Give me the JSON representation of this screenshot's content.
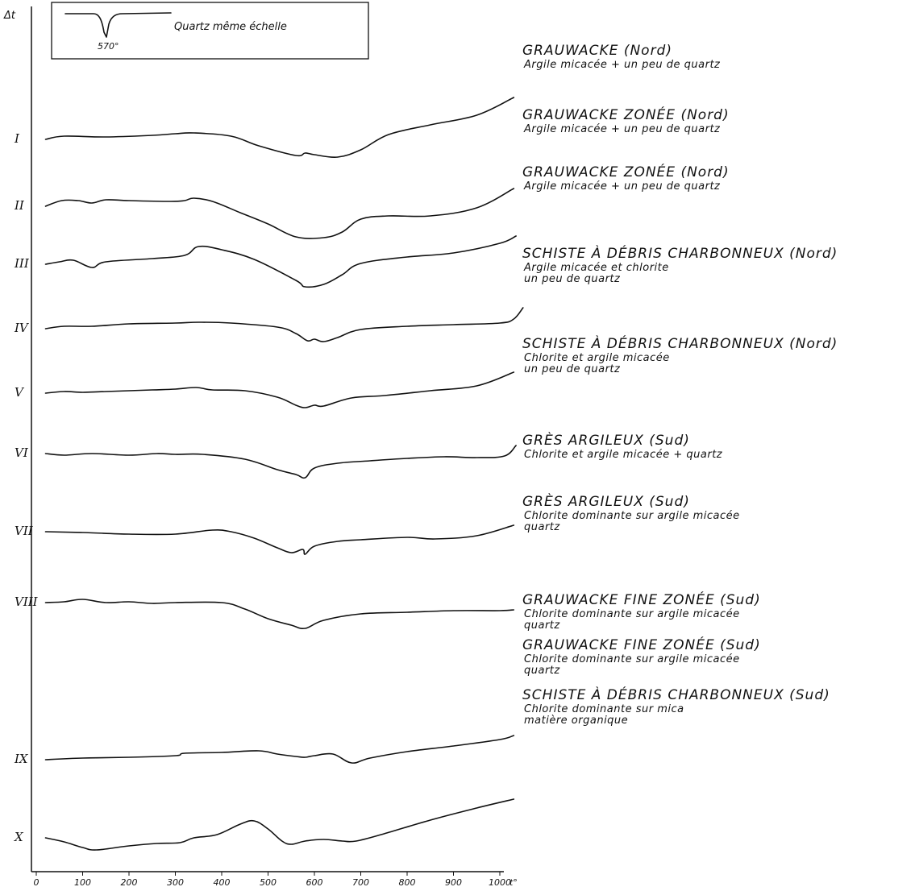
{
  "chart_data": {
    "type": "line",
    "xlabel": "t°",
    "ylabel": "Δt",
    "x_ticks": [
      "0",
      "100",
      "200",
      "300",
      "400",
      "500",
      "600",
      "700",
      "800",
      "900",
      "1000"
    ],
    "xlim": [
      0,
      1070
    ],
    "inset": {
      "title": "Quartz même échelle",
      "peak_label": "570°"
    },
    "series": [
      {
        "name": "I",
        "title": "GRAUWACKE (Nord)",
        "desc": [
          "Argile micacée + un peu de quartz"
        ],
        "points": [
          [
            20,
            0
          ],
          [
            60,
            4
          ],
          [
            150,
            3
          ],
          [
            250,
            5
          ],
          [
            300,
            7
          ],
          [
            340,
            8
          ],
          [
            420,
            4
          ],
          [
            480,
            -8
          ],
          [
            560,
            -20
          ],
          [
            580,
            -17
          ],
          [
            600,
            -19
          ],
          [
            650,
            -22
          ],
          [
            700,
            -13
          ],
          [
            760,
            6
          ],
          [
            850,
            18
          ],
          [
            950,
            30
          ],
          [
            1030,
            52
          ]
        ]
      },
      {
        "name": "II",
        "title": "GRAUWACKE ZONÉE (Nord)",
        "desc": [
          "Argile micacée + un peu de quartz"
        ],
        "points": [
          [
            20,
            0
          ],
          [
            55,
            7
          ],
          [
            90,
            7
          ],
          [
            120,
            4
          ],
          [
            150,
            8
          ],
          [
            200,
            7
          ],
          [
            290,
            6
          ],
          [
            320,
            7
          ],
          [
            340,
            10
          ],
          [
            380,
            6
          ],
          [
            440,
            -8
          ],
          [
            500,
            -22
          ],
          [
            560,
            -38
          ],
          [
            620,
            -39
          ],
          [
            660,
            -32
          ],
          [
            700,
            -16
          ],
          [
            760,
            -12
          ],
          [
            850,
            -12
          ],
          [
            950,
            -2
          ],
          [
            1030,
            22
          ]
        ]
      },
      {
        "name": "III",
        "title": "GRAUWACKE ZONÉE (Nord)",
        "desc": [
          "Argile micacée + un peu de quartz"
        ],
        "points": [
          [
            20,
            0
          ],
          [
            50,
            3
          ],
          [
            80,
            5
          ],
          [
            120,
            -4
          ],
          [
            150,
            3
          ],
          [
            250,
            7
          ],
          [
            320,
            11
          ],
          [
            350,
            22
          ],
          [
            400,
            18
          ],
          [
            470,
            6
          ],
          [
            560,
            -20
          ],
          [
            580,
            -28
          ],
          [
            620,
            -25
          ],
          [
            660,
            -13
          ],
          [
            700,
            1
          ],
          [
            800,
            9
          ],
          [
            900,
            14
          ],
          [
            1000,
            26
          ],
          [
            1035,
            35
          ]
        ]
      },
      {
        "name": "IV",
        "title": "SCHISTE À DÉBRIS CHARBONNEUX (Nord)",
        "desc": [
          "Argile micacée et chlorite",
          "un peu de quartz"
        ],
        "points": [
          [
            20,
            0
          ],
          [
            60,
            3
          ],
          [
            120,
            3
          ],
          [
            200,
            6
          ],
          [
            300,
            7
          ],
          [
            350,
            8
          ],
          [
            420,
            7
          ],
          [
            520,
            2
          ],
          [
            560,
            -6
          ],
          [
            585,
            -15
          ],
          [
            600,
            -13
          ],
          [
            620,
            -16
          ],
          [
            650,
            -11
          ],
          [
            700,
            -1
          ],
          [
            800,
            3
          ],
          [
            900,
            5
          ],
          [
            1000,
            7
          ],
          [
            1030,
            12
          ],
          [
            1050,
            26
          ]
        ]
      },
      {
        "name": "V",
        "title": "SCHISTE À DÉBRIS CHARBONNEUX (Nord)",
        "desc": [
          "Chlorite et argile micacée",
          "un peu de quartz"
        ],
        "points": [
          [
            20,
            0
          ],
          [
            60,
            2
          ],
          [
            100,
            1
          ],
          [
            150,
            2
          ],
          [
            250,
            4
          ],
          [
            300,
            5
          ],
          [
            345,
            7
          ],
          [
            380,
            4
          ],
          [
            450,
            3
          ],
          [
            520,
            -5
          ],
          [
            560,
            -15
          ],
          [
            580,
            -18
          ],
          [
            600,
            -15
          ],
          [
            620,
            -16
          ],
          [
            680,
            -6
          ],
          [
            750,
            -3
          ],
          [
            850,
            3
          ],
          [
            950,
            9
          ],
          [
            1030,
            26
          ]
        ]
      },
      {
        "name": "VI",
        "title": "GRÈS ARGILEUX (Sud)",
        "desc": [
          "Chlorite et argile micacée + quartz"
        ],
        "points": [
          [
            20,
            0
          ],
          [
            60,
            -2
          ],
          [
            120,
            0
          ],
          [
            200,
            -2
          ],
          [
            260,
            0
          ],
          [
            300,
            -1
          ],
          [
            360,
            -1
          ],
          [
            450,
            -7
          ],
          [
            520,
            -20
          ],
          [
            560,
            -26
          ],
          [
            580,
            -30
          ],
          [
            600,
            -18
          ],
          [
            650,
            -12
          ],
          [
            720,
            -9
          ],
          [
            800,
            -6
          ],
          [
            880,
            -4
          ],
          [
            950,
            -5
          ],
          [
            1010,
            -3
          ],
          [
            1035,
            10
          ]
        ]
      },
      {
        "name": "VII",
        "title": "GRÈS ARGILEUX (Sud)",
        "desc": [
          "Chlorite dominante sur argile micacée",
          "quartz"
        ],
        "points": [
          [
            20,
            0
          ],
          [
            100,
            -1
          ],
          [
            200,
            -3
          ],
          [
            300,
            -3
          ],
          [
            380,
            2
          ],
          [
            420,
            0
          ],
          [
            470,
            -8
          ],
          [
            520,
            -20
          ],
          [
            550,
            -26
          ],
          [
            575,
            -22
          ],
          [
            580,
            -28
          ],
          [
            600,
            -18
          ],
          [
            650,
            -12
          ],
          [
            700,
            -10
          ],
          [
            800,
            -7
          ],
          [
            860,
            -9
          ],
          [
            950,
            -5
          ],
          [
            1030,
            8
          ]
        ]
      },
      {
        "name": "VIII",
        "title": "GRAUWACKE FINE ZONÉE (Sud)",
        "desc": [
          "Chlorite dominante sur argile micacée",
          "quartz"
        ],
        "points": [
          [
            20,
            0
          ],
          [
            60,
            1
          ],
          [
            100,
            4
          ],
          [
            150,
            0
          ],
          [
            200,
            1
          ],
          [
            250,
            -1
          ],
          [
            300,
            0
          ],
          [
            400,
            0
          ],
          [
            450,
            -8
          ],
          [
            500,
            -20
          ],
          [
            550,
            -28
          ],
          [
            580,
            -32
          ],
          [
            620,
            -22
          ],
          [
            700,
            -14
          ],
          [
            800,
            -12
          ],
          [
            900,
            -10
          ],
          [
            1000,
            -10
          ],
          [
            1030,
            -9
          ]
        ]
      },
      {
        "name": "IX",
        "title": "GRAUWACKE FINE ZONÉE (Sud)",
        "desc": [
          "Chlorite dominante sur argile micacée",
          "quartz"
        ],
        "points": [
          [
            20,
            0
          ],
          [
            100,
            2
          ],
          [
            200,
            3
          ],
          [
            300,
            5
          ],
          [
            320,
            8
          ],
          [
            400,
            9
          ],
          [
            480,
            11
          ],
          [
            520,
            7
          ],
          [
            560,
            4
          ],
          [
            580,
            3
          ],
          [
            600,
            5
          ],
          [
            640,
            7
          ],
          [
            680,
            -4
          ],
          [
            720,
            2
          ],
          [
            800,
            10
          ],
          [
            900,
            17
          ],
          [
            1000,
            25
          ],
          [
            1030,
            30
          ]
        ]
      },
      {
        "name": "X",
        "title": "SCHISTE À DÉBRIS CHARBONNEUX (Sud)",
        "desc": [
          "Chlorite dominante sur mica",
          "matière organique"
        ],
        "points": [
          [
            20,
            0
          ],
          [
            60,
            -5
          ],
          [
            100,
            -12
          ],
          [
            130,
            -15
          ],
          [
            200,
            -10
          ],
          [
            260,
            -7
          ],
          [
            310,
            -6
          ],
          [
            340,
            0
          ],
          [
            390,
            4
          ],
          [
            440,
            17
          ],
          [
            470,
            21
          ],
          [
            500,
            11
          ],
          [
            530,
            -4
          ],
          [
            550,
            -8
          ],
          [
            580,
            -4
          ],
          [
            620,
            -2
          ],
          [
            660,
            -4
          ],
          [
            690,
            -4
          ],
          [
            750,
            5
          ],
          [
            850,
            22
          ],
          [
            950,
            37
          ],
          [
            1030,
            48
          ]
        ]
      }
    ]
  }
}
